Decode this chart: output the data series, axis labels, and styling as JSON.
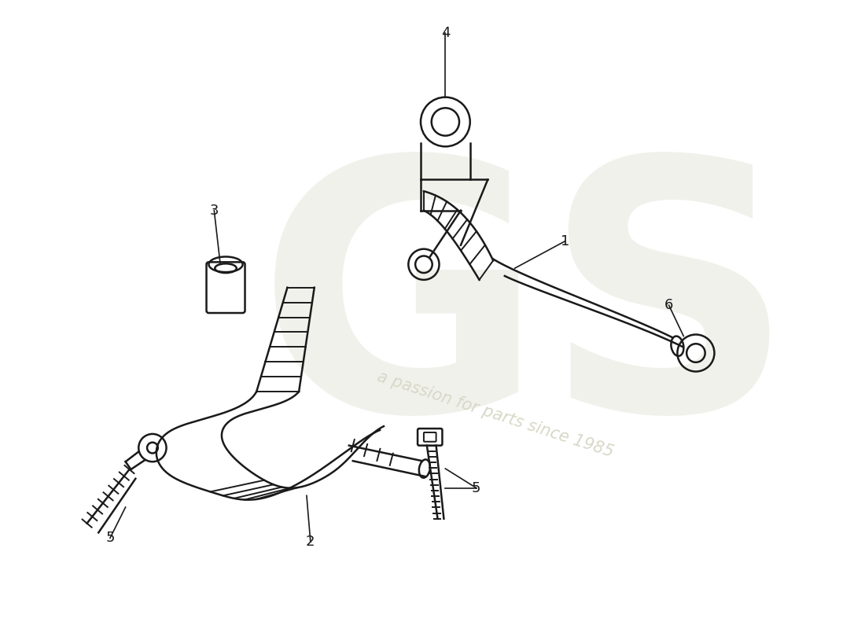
{
  "background_color": "#ffffff",
  "line_color": "#1a1a1a",
  "lw": 1.8,
  "lw_rib": 1.4,
  "label_fontsize": 13,
  "figsize": [
    11.0,
    8.0
  ],
  "dpi": 100,
  "wm_color": "#e0e0d8",
  "wm_text": "a passion for parts since 1985"
}
